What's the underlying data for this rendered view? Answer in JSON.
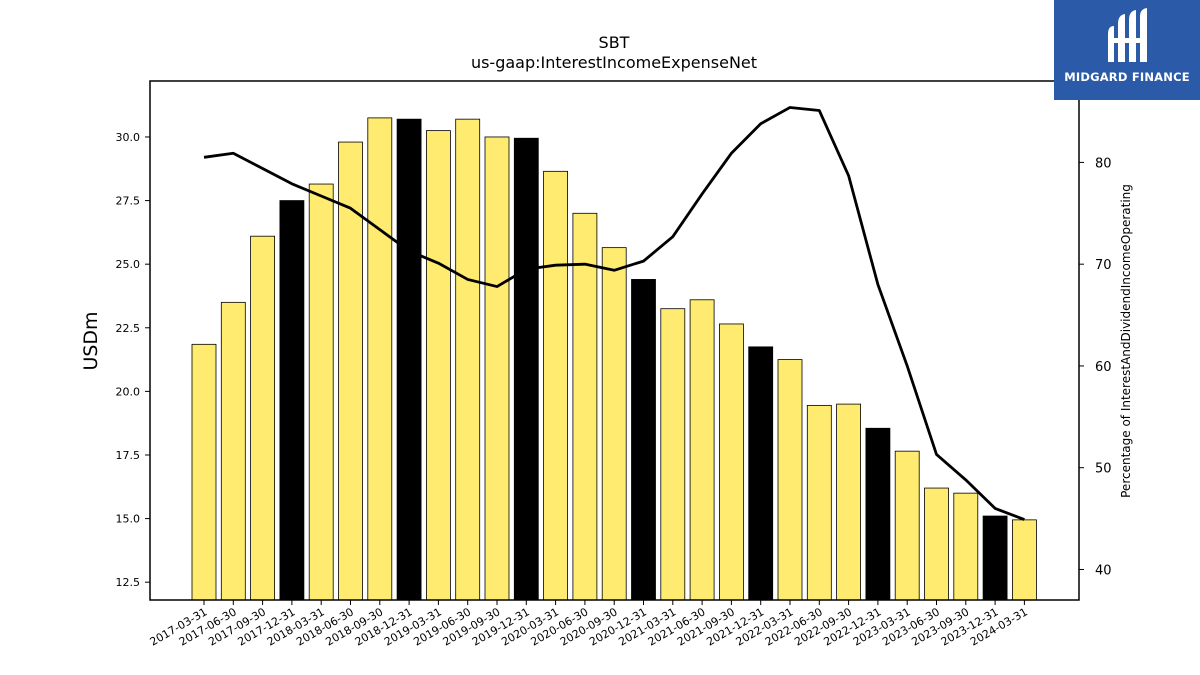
{
  "chart_data": {
    "type": "bar",
    "title": "SBT",
    "subtitle": "us-gaap:InterestIncomeExpenseNet",
    "ylabel": "USDm",
    "y2label": "Percentage of InterestAndDividendIncomeOperating",
    "ylim": [
      11.8,
      32.2
    ],
    "y2lim": [
      37.0,
      88.0
    ],
    "yticks": [
      "12.5",
      "15.0",
      "17.5",
      "20.0",
      "22.5",
      "25.0",
      "27.5",
      "30.0"
    ],
    "y2ticks": [
      "40",
      "50",
      "60",
      "70",
      "80"
    ],
    "categories": [
      "2017-03-31",
      "2017-06-30",
      "2017-09-30",
      "2017-12-31",
      "2018-03-31",
      "2018-06-30",
      "2018-09-30",
      "2018-12-31",
      "2019-03-31",
      "2019-06-30",
      "2019-09-30",
      "2019-12-31",
      "2020-03-31",
      "2020-06-30",
      "2020-09-30",
      "2020-12-31",
      "2021-03-31",
      "2021-06-30",
      "2021-09-30",
      "2021-12-31",
      "2022-03-31",
      "2022-06-30",
      "2022-09-30",
      "2022-12-31",
      "2023-03-31",
      "2023-06-30",
      "2023-09-30",
      "2023-12-31",
      "2024-03-31"
    ],
    "series": [
      {
        "type": "bar",
        "values": [
          21.85,
          23.5,
          26.1,
          27.5,
          28.15,
          29.8,
          30.75,
          30.7,
          30.25,
          30.7,
          30.0,
          29.95,
          28.65,
          27.0,
          25.65,
          24.4,
          23.25,
          23.6,
          22.65,
          21.75,
          21.25,
          19.45,
          19.5,
          18.55,
          17.65,
          16.2,
          16.0,
          15.1,
          14.95
        ],
        "highlight": [
          false,
          false,
          false,
          true,
          false,
          false,
          false,
          true,
          false,
          false,
          false,
          true,
          false,
          false,
          false,
          true,
          false,
          false,
          false,
          true,
          false,
          false,
          false,
          true,
          false,
          false,
          false,
          true,
          false
        ]
      },
      {
        "type": "line",
        "axis": "right",
        "values": [
          80.5,
          80.9,
          79.4,
          77.9,
          76.7,
          75.5,
          73.4,
          71.3,
          70.1,
          68.5,
          67.8,
          69.5,
          69.9,
          70.0,
          69.4,
          70.3,
          72.7,
          76.9,
          80.9,
          83.8,
          85.4,
          85.1,
          78.7,
          68.0,
          60.0,
          51.3,
          48.8,
          46.0,
          44.9
        ]
      }
    ],
    "colors": {
      "bar": "#ffeb70",
      "bar_highlight": "#000000",
      "bar_edge": "#000000",
      "line": "#000000"
    },
    "grid": false,
    "legend": "none"
  },
  "logo": {
    "brand": "MIDGARD FINANCE",
    "icon": "midgard-logo-icon"
  }
}
